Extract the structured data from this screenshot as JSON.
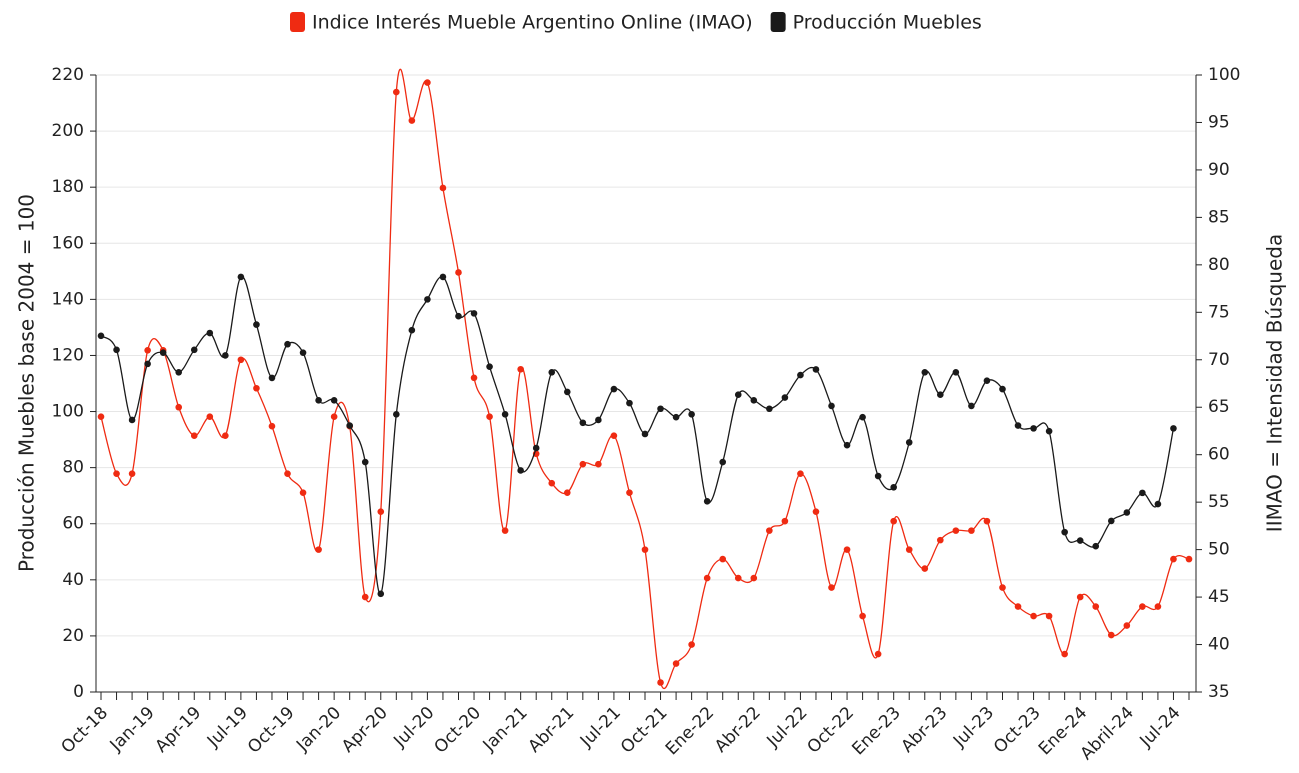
{
  "chart_data": {
    "type": "line",
    "categories": [
      "Oct-18",
      null,
      null,
      "Jan-19",
      null,
      null,
      "Apr-19",
      null,
      null,
      "Jul-19",
      null,
      null,
      "Oct-19",
      null,
      null,
      "Jan-20",
      null,
      null,
      "Apr-20",
      null,
      null,
      "Jul-20",
      null,
      null,
      "Oct-20",
      null,
      null,
      "Jan-21",
      null,
      null,
      "Abr-21",
      null,
      null,
      "Jul-21",
      null,
      null,
      "Oct-21",
      null,
      null,
      "Ene-22",
      null,
      null,
      "Abr-22",
      null,
      null,
      "Jul-22",
      null,
      null,
      "Oct-22",
      null,
      null,
      "Ene-23",
      null,
      null,
      "Abr-23",
      null,
      null,
      "Jul-23",
      null,
      null,
      "Oct-23",
      null,
      null,
      "Ene-24",
      null,
      null,
      "Abril-24",
      null,
      null,
      "Jul-24",
      null
    ],
    "series": [
      {
        "name": "Indice Interés Mueble Argentino Online (IMAO)",
        "color": "#ef2b12",
        "axis": "y2",
        "values": [
          64,
          58,
          58,
          71,
          71,
          65,
          62,
          64,
          62,
          70,
          67,
          63,
          58,
          56,
          50,
          64,
          63,
          45,
          54,
          98.2,
          95.2,
          99.2,
          88.1,
          79.2,
          68.1,
          64,
          52,
          69,
          60.1,
          57,
          56,
          59,
          59,
          62,
          56,
          50,
          36,
          38,
          40,
          47,
          49,
          47,
          47,
          52,
          53,
          58,
          54,
          46,
          50,
          43,
          39,
          53,
          50,
          48,
          51,
          52,
          52,
          53,
          46,
          44,
          43,
          43,
          39,
          45,
          44,
          41,
          42,
          44,
          44,
          49,
          49
        ]
      },
      {
        "name": "Producción Muebles",
        "color": "#1a1a1a",
        "values": [
          127,
          122,
          97,
          117,
          121,
          114,
          122,
          128,
          120,
          148,
          131,
          112,
          124,
          121,
          104,
          104,
          95,
          82,
          35,
          99,
          129,
          140,
          148,
          134,
          135,
          116,
          99,
          79,
          87,
          114,
          107,
          96,
          97,
          108,
          103,
          92,
          101,
          98,
          99,
          68,
          82,
          106,
          104,
          101,
          105,
          113,
          115,
          102,
          88,
          98,
          77,
          73,
          89,
          114,
          106,
          114,
          102,
          111,
          108,
          95,
          94,
          93,
          57,
          54,
          52,
          61,
          64,
          71,
          67,
          94,
          null
        ]
      }
    ],
    "y_label": "Producción Muebles base 2004 = 100",
    "y2_label": "IIMAO = Intensidad Búsqueda",
    "ylim": [
      0,
      220
    ],
    "yticks": [
      0,
      20,
      40,
      60,
      80,
      100,
      120,
      140,
      160,
      180,
      200,
      220
    ],
    "y2lim": [
      35,
      100
    ],
    "y2ticks": [
      35,
      40,
      45,
      50,
      55,
      60,
      65,
      70,
      75,
      80,
      85,
      90,
      95,
      100
    ],
    "grid": true,
    "legend": "top"
  }
}
